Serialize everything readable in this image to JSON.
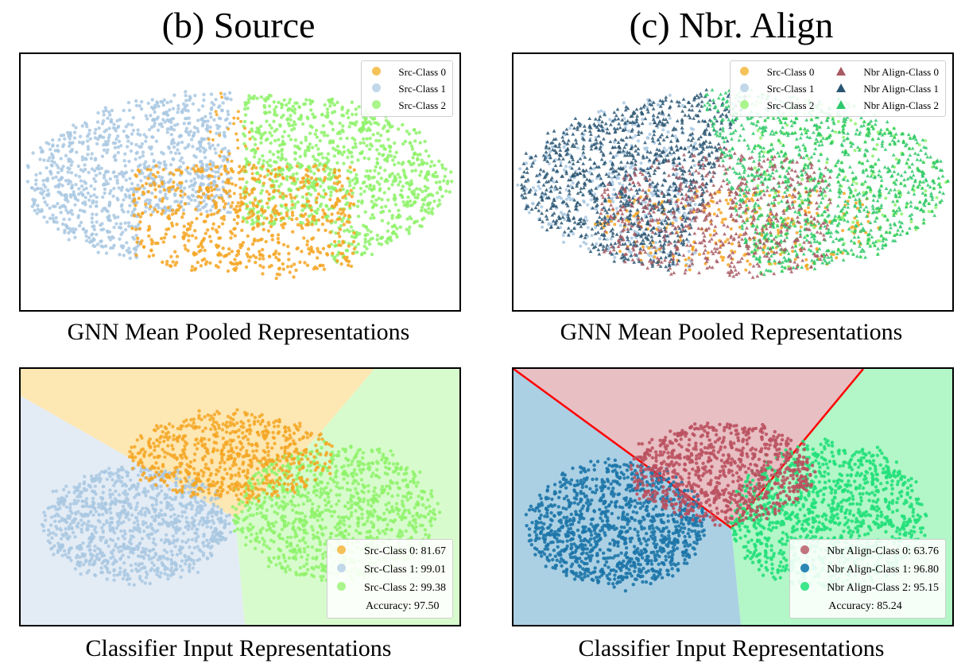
{
  "titles": {
    "left": "(b) Source",
    "right": "(c) Nbr. Align"
  },
  "captions": {
    "top_left": "GNN Mean Pooled Representations",
    "top_right": "GNN Mean Pooled Representations",
    "bottom_left": "Classifier Input Representations",
    "bottom_right": "Classifier Input Representations"
  },
  "colors": {
    "src0": "#f5a623",
    "src1": "#a9c8e2",
    "src2": "#8ef26a",
    "nbr0_tri": "#a85a63",
    "nbr1_tri": "#2a5673",
    "nbr2_tri": "#2ec86a",
    "nbr0_dot": "#b9505e",
    "nbr1_dot": "#1d76a8",
    "nbr2_dot": "#22e07a",
    "region_src0": "#fde7b3",
    "region_src1": "#e3ecf5",
    "region_src2": "#d8fbcd",
    "region_nbr0": "#e8bfc3",
    "region_nbr1": "#abd0e4",
    "region_nbr2": "#b3f6c7",
    "boundary": "#ff0000"
  },
  "chart_data": [
    {
      "type": "scatter",
      "title": "(b) Source",
      "xlabel": "GNN Mean Pooled Representations",
      "legend_position": "top-right",
      "legend_marker": "circle",
      "series": [
        {
          "name": "Src-Class 0",
          "marker": "circle"
        },
        {
          "name": "Src-Class 1",
          "marker": "circle"
        },
        {
          "name": "Src-Class 2",
          "marker": "circle"
        }
      ]
    },
    {
      "type": "scatter",
      "title": "(c) Nbr. Align",
      "xlabel": "GNN Mean Pooled Representations",
      "legend_position": "top-right",
      "series": [
        {
          "name": "Src-Class 0",
          "marker": "circle"
        },
        {
          "name": "Src-Class 1",
          "marker": "circle"
        },
        {
          "name": "Src-Class 2",
          "marker": "circle"
        },
        {
          "name": "Nbr Align-Class 0",
          "marker": "triangle"
        },
        {
          "name": "Nbr Align-Class 1",
          "marker": "triangle"
        },
        {
          "name": "Nbr Align-Class 2",
          "marker": "triangle"
        }
      ]
    },
    {
      "type": "scatter",
      "title": "",
      "xlabel": "Classifier Input Representations",
      "legend_position": "bottom-right",
      "decision_regions": true,
      "series": [
        {
          "name": "Src-Class 0: 81.67",
          "marker": "circle"
        },
        {
          "name": "Src-Class 1: 99.01",
          "marker": "circle"
        },
        {
          "name": "Src-Class 2: 99.38",
          "marker": "circle"
        }
      ],
      "accuracy_label": "Accuracy: 97.50"
    },
    {
      "type": "scatter",
      "title": "",
      "xlabel": "Classifier Input Representations",
      "legend_position": "bottom-right",
      "decision_regions": true,
      "decision_boundary_lines": true,
      "series": [
        {
          "name": "Nbr Align-Class 0: 63.76",
          "marker": "circle"
        },
        {
          "name": "Nbr Align-Class 1: 96.80",
          "marker": "circle"
        },
        {
          "name": "Nbr Align-Class 2: 95.15",
          "marker": "circle"
        }
      ],
      "accuracy_label": "Accuracy: 85.24"
    }
  ]
}
